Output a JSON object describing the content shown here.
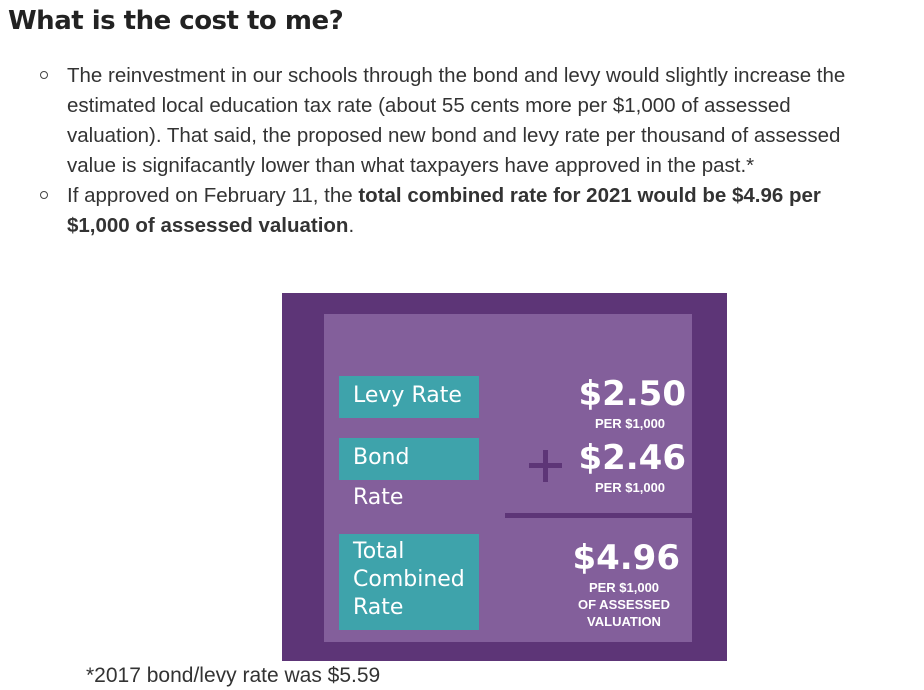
{
  "heading": "What is the cost to me?",
  "bullets": {
    "first": "The reinvestment in our schools through the bond and levy would slightly increase the estimated local education tax rate (about 55 cents more per $1,000 of assessed valuation). That said, the proposed new bond and levy rate per thousand of assessed value is signifacantly lower than what taxpayers have approved in the past.*",
    "second_prefix": "If approved on February 11, the ",
    "second_bold": "total combined rate for 2021 would be $4.96 per $1,000 of assessed valuation",
    "second_suffix": "."
  },
  "graphic": {
    "levy_label": "Levy Rate",
    "levy_amount": "$2.50",
    "levy_unit": "PER $1,000",
    "bond_label": "Bond Rate",
    "bond_amount": "$2.46",
    "bond_unit": "PER $1,000",
    "total_label_1": "Total",
    "total_label_2": "Combined",
    "total_label_3": "Rate",
    "total_amount": "$4.96",
    "total_unit_1": "PER $1,000",
    "total_unit_2": "OF ASSESSED",
    "total_unit_3": "VALUATION",
    "colors": {
      "outer": "#5d3577",
      "inner": "#835f9b",
      "label_bg": "#3ea3ab"
    }
  },
  "icons": {
    "plus": "plus-icon",
    "bullet": "circle-bullet-icon"
  },
  "footnote": "*2017 bond/levy rate was $5.59"
}
